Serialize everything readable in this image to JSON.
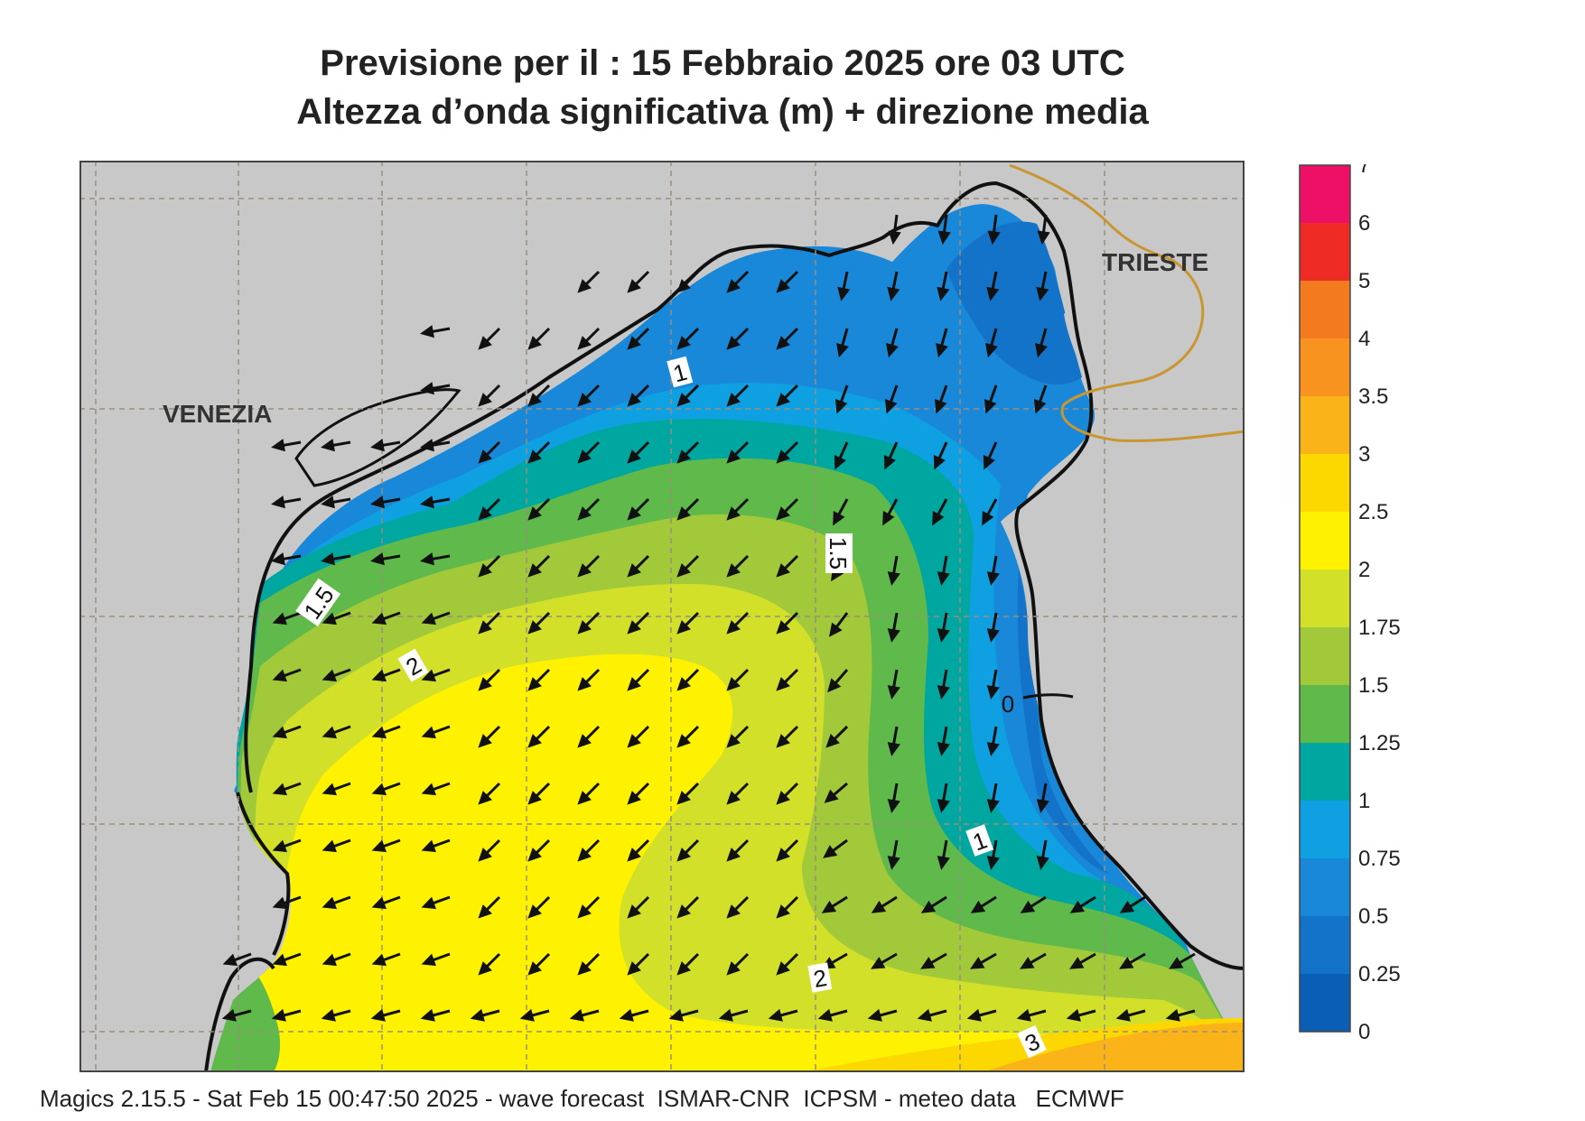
{
  "title": {
    "line1": "Previsione per il  :  15  Febbraio 2025   ore 03 UTC",
    "line2": "Altezza d’onda significativa (m) + direzione media"
  },
  "places": {
    "venezia": "VENEZIA",
    "trieste": "TRIESTE"
  },
  "contour_labels": [
    "1",
    "1.5",
    "1.5",
    "2",
    "1",
    "2",
    "3",
    "0"
  ],
  "legend": {
    "levels": [
      "0",
      "0.25",
      "0.5",
      "0.75",
      "1",
      "1.25",
      "1.5",
      "1.75",
      "2",
      "2.5",
      "3",
      "3.5",
      "4",
      "5",
      "6",
      "7"
    ],
    "colors": [
      "#0a5fb5",
      "#1373c8",
      "#1a88d8",
      "#0fa0e2",
      "#00a6a0",
      "#5fb94b",
      "#a2c93a",
      "#d3e02a",
      "#fff200",
      "#fcd800",
      "#fab41a",
      "#f7931e",
      "#f47a20",
      "#ee2a24",
      "#ee1066"
    ]
  },
  "colors": {
    "land": "#c8c8c8",
    "coast": "#111111",
    "border": "#c9962f",
    "grid": "#9b8e7e"
  },
  "footer": "Magics 2.15.5 - Sat Feb 15 00:47:50 2025 - wave forecast  ISMAR-CNR  ICPSM - meteo data   ECMWF"
}
